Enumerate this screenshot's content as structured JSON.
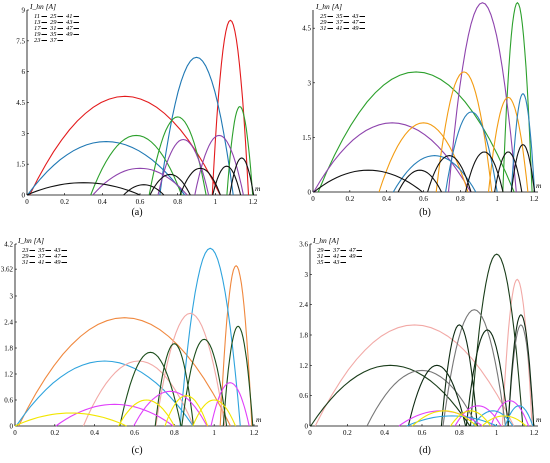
{
  "figure": {
    "panels": [
      {
        "id": "a",
        "caption": "(a)"
      },
      {
        "id": "b",
        "caption": "(b)"
      },
      {
        "id": "c",
        "caption": "(c)"
      },
      {
        "id": "d",
        "caption": "(d)"
      }
    ]
  },
  "chart_data": [
    {
      "type": "line",
      "panel": "a",
      "caption": "(a)",
      "ylabel": "I_hn [A]",
      "xlabel": "m",
      "xlim": [
        0,
        1.2
      ],
      "ylim": [
        0,
        9
      ],
      "xticks": [
        "0",
        "0.2",
        "0.4",
        "0.6",
        "0.8",
        "1",
        "1.2"
      ],
      "yticks": [
        "0",
        "1.5",
        "3",
        "4.5",
        "6",
        "7.5",
        "9"
      ],
      "legend": {
        "placement": "top-left",
        "entries": [
          "11",
          "25",
          "41",
          "13",
          "29",
          "43",
          "17",
          "31",
          "47",
          "19",
          "35",
          "49",
          "23",
          "37"
        ]
      },
      "series": [
        {
          "name": "11",
          "color": "#e31a1c",
          "peaks": [
            [
              0.52,
              4.8
            ],
            [
              1.08,
              8.5
            ]
          ]
        },
        {
          "name": "13",
          "color": "#1f78b4",
          "peaks": [
            [
              0.42,
              2.6
            ],
            [
              0.9,
              6.7
            ]
          ]
        },
        {
          "name": "17",
          "color": "#2ca02c",
          "peaks": [
            [
              0.58,
              2.9
            ],
            [
              0.8,
              3.8
            ],
            [
              1.13,
              4.3
            ]
          ]
        },
        {
          "name": "19",
          "color": "#8e44ad",
          "peaks": [
            [
              0.6,
              1.3
            ],
            [
              0.83,
              2.7
            ],
            [
              1.02,
              2.9
            ]
          ]
        },
        {
          "name": "23",
          "color": "#111111",
          "peaks": [
            [
              0.3,
              0.6
            ],
            [
              0.62,
              0.5
            ],
            [
              0.76,
              1.0
            ],
            [
              0.92,
              1.3
            ],
            [
              1.06,
              1.4
            ],
            [
              1.14,
              1.8
            ]
          ]
        }
      ]
    },
    {
      "type": "line",
      "panel": "b",
      "caption": "(b)",
      "ylabel": "I_hn [A]",
      "xlabel": "m",
      "xlim": [
        0,
        1.2
      ],
      "ylim": [
        0,
        5
      ],
      "xticks": [
        "0",
        "0.2",
        "0.4",
        "0.6",
        "0.8",
        "1",
        "1.2"
      ],
      "yticks": [
        "0",
        "1.5",
        "3",
        "4.5"
      ],
      "legend": {
        "placement": "top-left",
        "entries": [
          "25",
          "35",
          "43",
          "29",
          "37",
          "47",
          "31",
          "41",
          "49"
        ]
      },
      "series": [
        {
          "name": "25",
          "color": "#2ca02c",
          "peaks": [
            [
              0.56,
              3.3
            ],
            [
              1.11,
              5.2
            ]
          ]
        },
        {
          "name": "29",
          "color": "#8e44ad",
          "peaks": [
            [
              0.43,
              1.9
            ],
            [
              0.92,
              5.2
            ]
          ]
        },
        {
          "name": "31",
          "color": "#f39c12",
          "peaks": [
            [
              0.6,
              1.9
            ],
            [
              0.82,
              3.3
            ],
            [
              1.06,
              2.6
            ]
          ]
        },
        {
          "name": "35",
          "color": "#2980b9",
          "peaks": [
            [
              0.66,
              1.0
            ],
            [
              0.86,
              2.2
            ],
            [
              1.14,
              2.7
            ]
          ]
        },
        {
          "name": "37",
          "color": "#111111",
          "peaks": [
            [
              0.3,
              0.6
            ],
            [
              0.58,
              0.6
            ],
            [
              0.74,
              1.0
            ],
            [
              0.93,
              1.1
            ],
            [
              1.06,
              1.1
            ],
            [
              1.14,
              1.3
            ]
          ]
        }
      ]
    },
    {
      "type": "line",
      "panel": "c",
      "caption": "(c)",
      "ylabel": "I_hn [A]",
      "xlabel": "m",
      "xlim": [
        0,
        1.2
      ],
      "ylim": [
        0,
        4.2
      ],
      "xticks": [
        "0",
        "0.2",
        "0.4",
        "0.6",
        "0.8",
        "1",
        "1.2"
      ],
      "yticks": [
        "0",
        "0.6",
        "1.2",
        "1.8",
        "2.4",
        "3",
        "3.62",
        "4.2"
      ],
      "legend": {
        "placement": "top-left",
        "entries": [
          "23",
          "35",
          "43",
          "29",
          "37",
          "47",
          "31",
          "41",
          "49"
        ]
      },
      "series": [
        {
          "name": "23",
          "color": "#f0883e",
          "peaks": [
            [
              0.55,
              2.5
            ],
            [
              1.11,
              3.7
            ]
          ]
        },
        {
          "name": "29",
          "color": "#2ea3dd",
          "peaks": [
            [
              0.45,
              1.5
            ],
            [
              0.98,
              4.1
            ]
          ]
        },
        {
          "name": "31",
          "color": "#f2a9a6",
          "peaks": [
            [
              0.62,
              1.5
            ],
            [
              0.88,
              2.6
            ]
          ]
        },
        {
          "name": "35",
          "color": "#1b4d1b",
          "peaks": [
            [
              0.68,
              1.7
            ],
            [
              0.8,
              1.9
            ],
            [
              0.95,
              2.0
            ],
            [
              1.12,
              2.3
            ]
          ]
        },
        {
          "name": "41",
          "color": "#e040fb",
          "peaks": [
            [
              0.5,
              0.5
            ],
            [
              0.78,
              0.8
            ],
            [
              1.08,
              1.0
            ]
          ]
        },
        {
          "name": "49",
          "color": "#f2e600",
          "peaks": [
            [
              0.28,
              0.3
            ],
            [
              0.66,
              0.6
            ],
            [
              0.86,
              0.7
            ],
            [
              1.0,
              0.6
            ]
          ]
        }
      ]
    },
    {
      "type": "line",
      "panel": "d",
      "caption": "(d)",
      "ylabel": "I_hn [A]",
      "xlabel": "m",
      "xlim": [
        0,
        1.2
      ],
      "ylim": [
        0,
        3.6
      ],
      "xticks": [
        "0",
        "0.2",
        "0.4",
        "0.6",
        "0.8",
        "1",
        "1.2"
      ],
      "yticks": [
        "0",
        "0.6",
        "1.2",
        "1.8",
        "2.4",
        "3",
        "3.6"
      ],
      "legend": {
        "placement": "top-left",
        "entries": [
          "29",
          "37",
          "47",
          "31",
          "41",
          "49",
          "35",
          "43"
        ]
      },
      "series": [
        {
          "name": "29",
          "color": "#f2a9a6",
          "peaks": [
            [
              0.56,
              2.0
            ],
            [
              1.11,
              2.9
            ]
          ]
        },
        {
          "name": "31",
          "color": "#1a3d1a",
          "peaks": [
            [
              0.43,
              1.2
            ],
            [
              1.0,
              3.4
            ]
          ]
        },
        {
          "name": "35",
          "color": "#777777",
          "peaks": [
            [
              0.6,
              1.1
            ],
            [
              0.88,
              2.3
            ],
            [
              1.13,
              2.0
            ]
          ]
        },
        {
          "name": "37",
          "color": "#0e2a12",
          "peaks": [
            [
              0.68,
              1.2
            ],
            [
              0.8,
              2.0
            ],
            [
              0.95,
              1.9
            ],
            [
              1.13,
              2.2
            ]
          ]
        },
        {
          "name": "41",
          "color": "#e040fb",
          "peaks": [
            [
              0.7,
              0.3
            ],
            [
              0.9,
              0.4
            ],
            [
              1.07,
              0.5
            ]
          ]
        },
        {
          "name": "43",
          "color": "#2ea3dd",
          "peaks": [
            [
              0.76,
              0.2
            ],
            [
              0.98,
              0.3
            ],
            [
              1.12,
              0.4
            ]
          ]
        },
        {
          "name": "49",
          "color": "#f2e600",
          "peaks": [
            [
              0.72,
              0.3
            ],
            [
              0.86,
              0.3
            ],
            [
              1.04,
              0.2
            ]
          ]
        }
      ]
    }
  ]
}
